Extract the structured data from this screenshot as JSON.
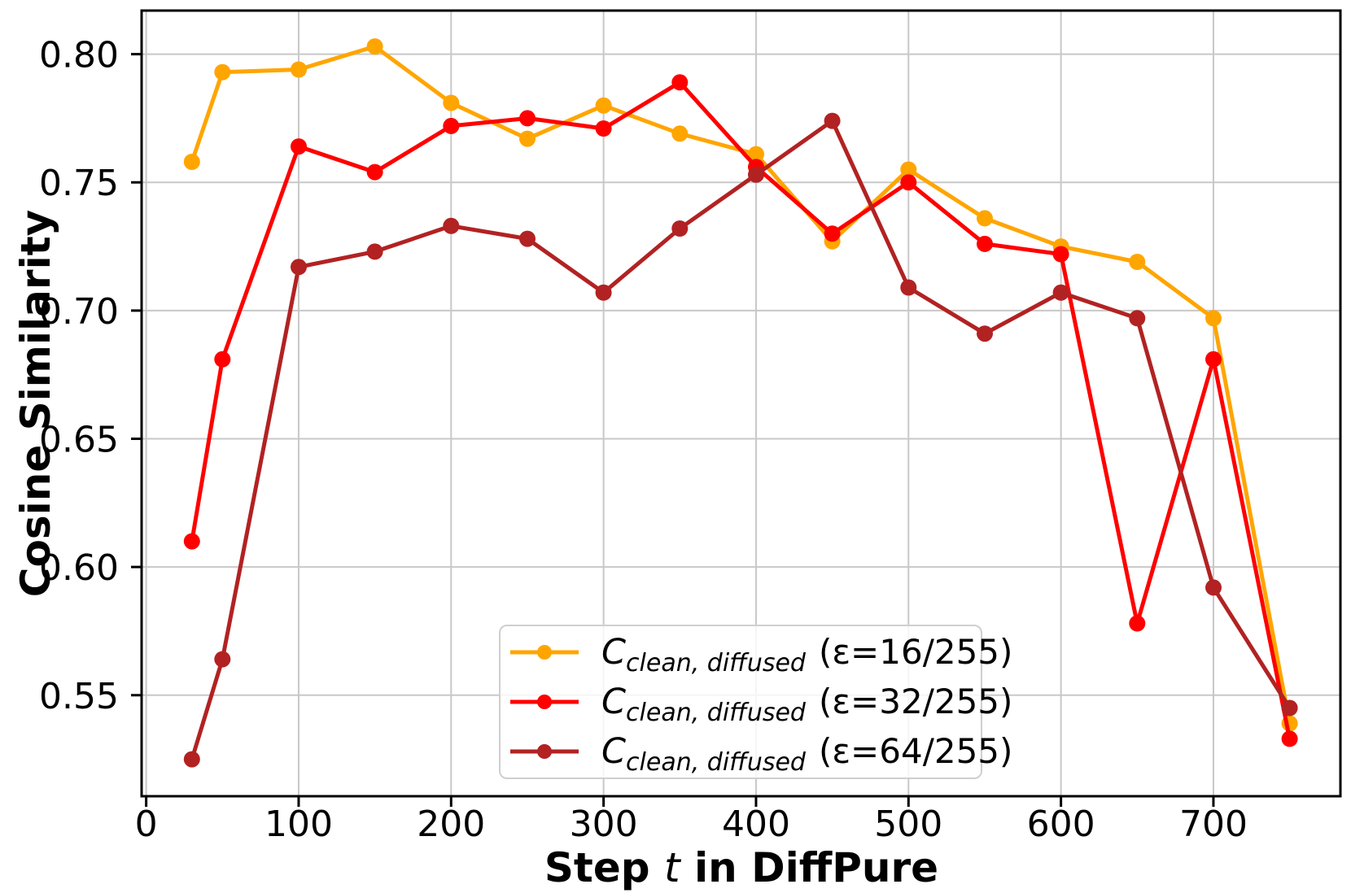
{
  "chart_data": {
    "type": "line",
    "title": "",
    "ylabel": "Cosine Similarity",
    "xlabel_parts": [
      {
        "text": "Step ",
        "style": "bold"
      },
      {
        "text": "t",
        "style": "italic"
      },
      {
        "text": " in DiffPure",
        "style": "bold"
      }
    ],
    "x": [
      30,
      50,
      100,
      150,
      200,
      250,
      300,
      350,
      400,
      450,
      500,
      550,
      600,
      650,
      700,
      750
    ],
    "series": [
      {
        "label_c": "C",
        "label_sub": "clean, diffused",
        "label_eps": "(ε=16/255)",
        "color": "#FFA500",
        "values": [
          0.758,
          0.793,
          0.794,
          0.803,
          0.781,
          0.767,
          0.78,
          0.769,
          0.761,
          0.727,
          0.755,
          0.736,
          0.725,
          0.719,
          0.697,
          0.539
        ]
      },
      {
        "label_c": "C",
        "label_sub": "clean, diffused",
        "label_eps": "(ε=32/255)",
        "color": "#FF0000",
        "values": [
          0.61,
          0.681,
          0.764,
          0.754,
          0.772,
          0.775,
          0.771,
          0.789,
          0.756,
          0.73,
          0.75,
          0.726,
          0.722,
          0.578,
          0.681,
          0.533
        ]
      },
      {
        "label_c": "C",
        "label_sub": "clean, diffused",
        "label_eps": "(ε=64/255)",
        "color": "#B22222",
        "values": [
          0.525,
          0.564,
          0.717,
          0.723,
          0.733,
          0.728,
          0.707,
          0.732,
          0.753,
          0.774,
          0.709,
          0.691,
          0.707,
          0.697,
          0.592,
          0.545
        ]
      }
    ],
    "x_ticks": [
      0,
      100,
      200,
      300,
      400,
      500,
      600,
      700
    ],
    "x_tick_labels": [
      "0",
      "100",
      "200",
      "300",
      "400",
      "500",
      "600",
      "700"
    ],
    "y_ticks": [
      0.8,
      0.75,
      0.7,
      0.65,
      0.6,
      0.55
    ],
    "y_tick_labels": [
      "0.80",
      "0.75",
      "0.70",
      "0.65",
      "0.60",
      "0.55"
    ],
    "xlim": [
      -3,
      783.3
    ],
    "ylim": [
      0.5106,
      0.817
    ],
    "grid": true,
    "grid_color": "#c8c8c8",
    "axis_color": "#000000",
    "legend_position": "inside lower-center"
  }
}
